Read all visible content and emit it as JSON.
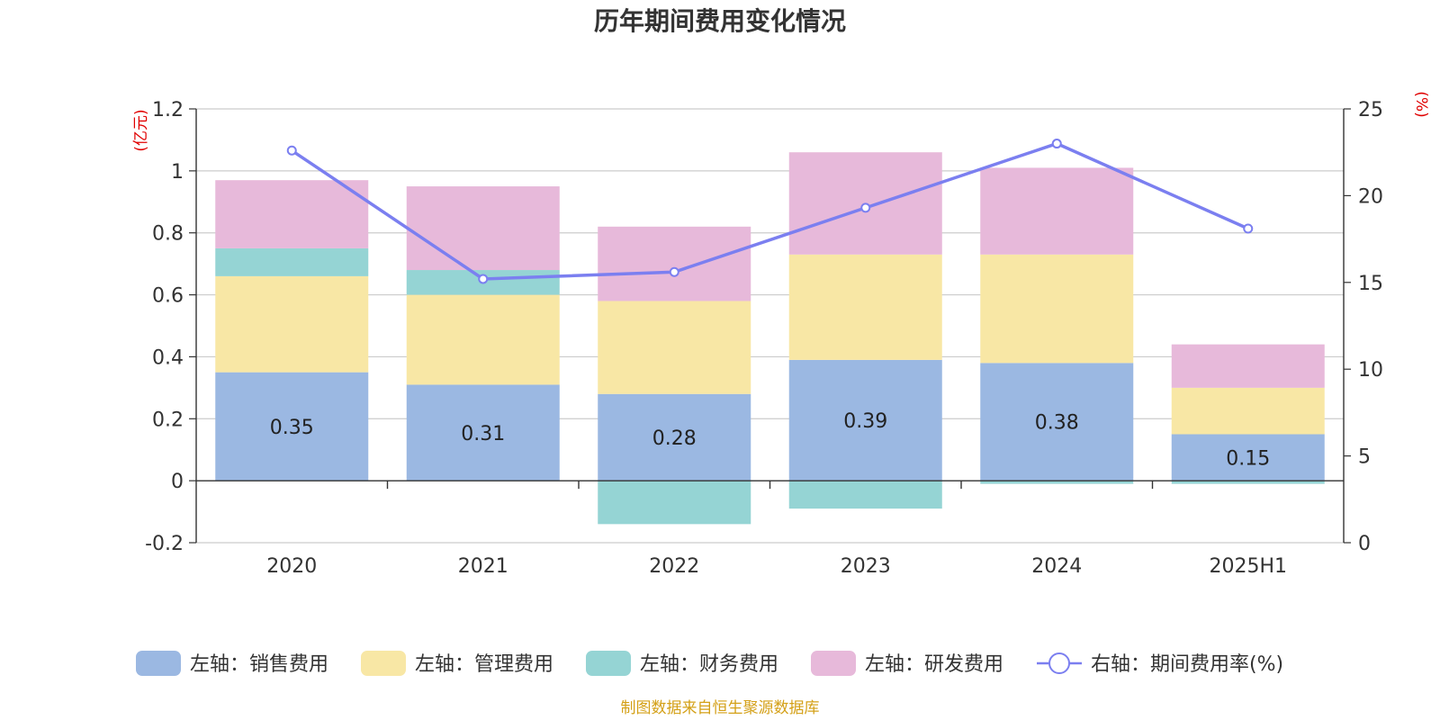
{
  "chart_data": {
    "type": "bar",
    "stacked": true,
    "title": "历年期间费用变化情况",
    "categories": [
      "2020",
      "2021",
      "2022",
      "2023",
      "2024",
      "2025H1"
    ],
    "left_axis": {
      "unit": "(亿元)",
      "ylim": [
        -0.2,
        1.2
      ],
      "ticks": [
        -0.2,
        0,
        0.2,
        0.4,
        0.6,
        0.8,
        1,
        1.2
      ],
      "tick_labels": [
        "-0.2",
        "0",
        "0.2",
        "0.4",
        "0.6",
        "0.8",
        "1",
        "1.2"
      ]
    },
    "right_axis": {
      "unit": "(%)",
      "ylim": [
        0,
        25
      ],
      "ticks": [
        0,
        5,
        10,
        15,
        20,
        25
      ],
      "tick_labels": [
        "0",
        "5",
        "10",
        "15",
        "20",
        "25"
      ]
    },
    "series": [
      {
        "name": "左轴：销售费用",
        "color": "#9bb8e2",
        "axis": "left",
        "values": [
          0.35,
          0.31,
          0.28,
          0.39,
          0.38,
          0.15
        ],
        "labels": [
          "0.35",
          "0.31",
          "0.28",
          "0.39",
          "0.38",
          "0.15"
        ]
      },
      {
        "name": "左轴：管理费用",
        "color": "#f8e7a5",
        "axis": "left",
        "values": [
          0.31,
          0.29,
          0.3,
          0.34,
          0.35,
          0.15
        ]
      },
      {
        "name": "左轴：财务费用",
        "color": "#95d4d4",
        "axis": "left",
        "values": [
          0.09,
          0.08,
          -0.14,
          -0.09,
          -0.01,
          -0.01
        ]
      },
      {
        "name": "左轴：研发费用",
        "color": "#e7b9da",
        "axis": "left",
        "values": [
          0.22,
          0.27,
          0.24,
          0.33,
          0.28,
          0.14
        ]
      },
      {
        "name": "右轴：期间费用率(%)",
        "color": "#7b7ff0",
        "axis": "right",
        "type": "line",
        "values": [
          22.6,
          15.2,
          15.6,
          19.3,
          23.0,
          18.1
        ]
      }
    ],
    "legend_position": "bottom",
    "grid": true,
    "source": "制图数据来自恒生聚源数据库"
  }
}
